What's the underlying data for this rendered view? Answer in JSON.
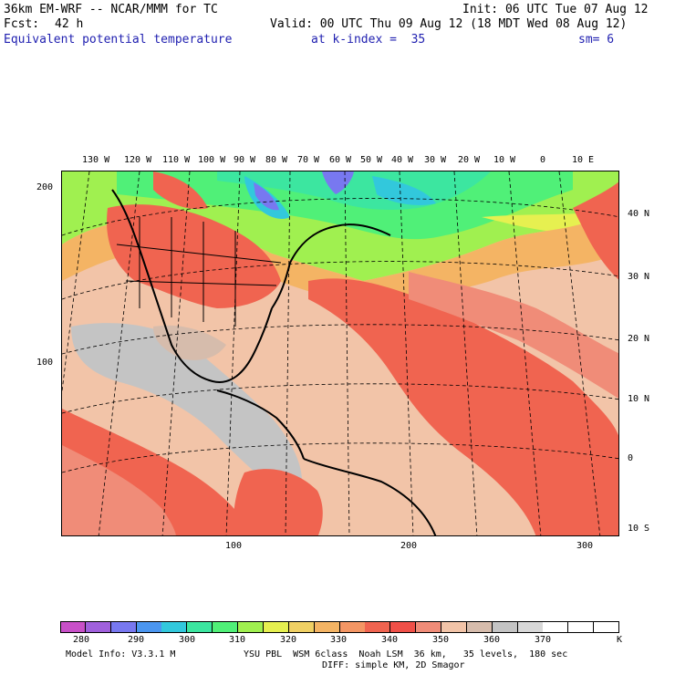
{
  "header": {
    "model": "36km EM-WRF -- NCAR/MMM for TC",
    "init": "Init: 06 UTC Tue 07 Aug 12",
    "fcst_label": "Fcst:",
    "fcst_hours": "42 h",
    "valid": "Valid: 00 UTC Thu 09 Aug 12 (18 MDT Wed 08 Aug 12)",
    "field": "Equivalent potential temperature",
    "level": "at k-index =  35",
    "smoothing": "sm= 6"
  },
  "map": {
    "longitude_labels": [
      "130 W",
      "120 W",
      "110 W",
      "100 W",
      "90 W",
      "80 W",
      "70 W",
      "60 W",
      "50 W",
      "40 W",
      "30 W",
      "20 W",
      "10 W",
      "0",
      "10 E"
    ],
    "latitude_labels": [
      "40 N",
      "30 N",
      "20 N",
      "10 N",
      "0",
      "10 S"
    ],
    "grid_y_labels": [
      "200",
      "100"
    ],
    "grid_x_labels": [
      "100",
      "200",
      "300"
    ]
  },
  "colorbar": {
    "colors": [
      "#c850c8",
      "#a060dc",
      "#7878f0",
      "#4b96f0",
      "#32c8dc",
      "#3ce6a0",
      "#50f078",
      "#a0f050",
      "#e6f050",
      "#f0d064",
      "#f4b464",
      "#f49664",
      "#f06450",
      "#f05048",
      "#f08c78",
      "#f2c4a8",
      "#d6bcac",
      "#c4c4c4",
      "#d8d8d8",
      "#ffffff",
      "#ffffff",
      "#ffffff"
    ],
    "labels": [
      "280",
      "290",
      "300",
      "310",
      "320",
      "330",
      "340",
      "350",
      "360",
      "370"
    ],
    "unit": "K"
  },
  "footer": {
    "model_info": "Model Info: V3.3.1 M",
    "physics": "YSU PBL  WSM 6class  Noah LSM  36 km,   35 levels,  180 sec",
    "diffusion": "DIFF: simple KM, 2D Smagor"
  }
}
